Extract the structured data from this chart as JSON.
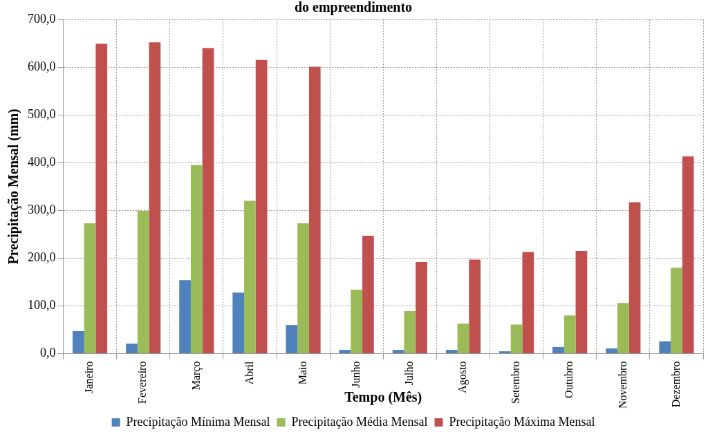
{
  "chart_data": {
    "type": "bar",
    "title": "do empreendimento",
    "xlabel": "Tempo (Mês)",
    "ylabel": "Precipitação Mensal (mm)",
    "categories": [
      "Janeiro",
      "Fevereiro",
      "Março",
      "Abril",
      "Maio",
      "Junho",
      "Julho",
      "Agosto",
      "Setembro",
      "Outubro",
      "Novembro",
      "Dezembro"
    ],
    "series": [
      {
        "name": "Precipitação Mínima Mensal",
        "color": "#4f81bd",
        "values": [
          47,
          21,
          154,
          128,
          60,
          8,
          8,
          8,
          5,
          14,
          11,
          26
        ]
      },
      {
        "name": "Precipitação Média Mensal",
        "color": "#9bbb59",
        "values": [
          273,
          299,
          395,
          320,
          273,
          134,
          89,
          63,
          61,
          80,
          106,
          180
        ]
      },
      {
        "name": "Precipitação Máxima Mensal",
        "color": "#c0504d",
        "values": [
          649,
          652,
          640,
          615,
          601,
          247,
          192,
          197,
          213,
          215,
          317,
          413
        ]
      }
    ],
    "ylim": [
      0,
      700
    ],
    "yticks": [
      {
        "value": 0,
        "label": "0,0"
      },
      {
        "value": 100,
        "label": "100,0"
      },
      {
        "value": 200,
        "label": "200,0"
      },
      {
        "value": 300,
        "label": "300,0"
      },
      {
        "value": 400,
        "label": "400,0"
      },
      {
        "value": 500,
        "label": "500,0"
      },
      {
        "value": 600,
        "label": "600,0"
      },
      {
        "value": 700,
        "label": "700,0"
      }
    ],
    "grid": true,
    "legend": "bottom"
  }
}
